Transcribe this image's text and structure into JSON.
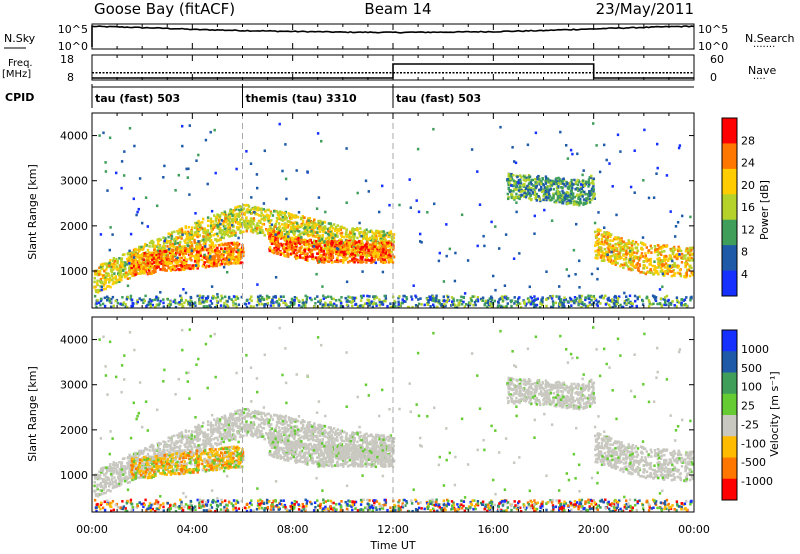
{
  "header": {
    "left": "Goose Bay (fitACF)",
    "center": "Beam 14",
    "right": "23/May/2011"
  },
  "chart_data": [
    {
      "type": "line",
      "panel": "noise",
      "left_label": "N.Sky",
      "right_label": "N.Search",
      "left_ticks": [
        "10^5",
        "10^0"
      ],
      "right_ticks": [
        "10^5",
        "10^0"
      ],
      "note": "log-scale noise traces",
      "series": [
        {
          "name": "N.Sky",
          "x": [
            0,
            2,
            4,
            6,
            8,
            10,
            12,
            14,
            16,
            18,
            20,
            22,
            24
          ],
          "values": [
            80000,
            40000,
            15000,
            8000,
            5000,
            3500,
            3000,
            3500,
            4500,
            8000,
            20000,
            45000,
            90000
          ]
        }
      ]
    },
    {
      "type": "line",
      "panel": "frequency",
      "left_label": "Freq.",
      "left_unit": "[MHz]",
      "right_label": "Nave",
      "left_ticks": [
        "18",
        "8"
      ],
      "right_ticks": [
        "60",
        "0"
      ],
      "series": [
        {
          "name": "Nave",
          "x": [
            0,
            12,
            12,
            20,
            20,
            24
          ],
          "values": [
            0,
            0,
            40,
            40,
            0,
            0
          ]
        },
        {
          "name": "Freq.",
          "x": [
            0,
            24
          ],
          "values": [
            10.5,
            10.5
          ]
        }
      ]
    },
    {
      "type": "table",
      "panel": "cpid",
      "label": "CPID",
      "segments": [
        {
          "start": 0,
          "end": 6,
          "text": "tau (fast) 503"
        },
        {
          "start": 6,
          "end": 12,
          "text": "themis (tau) 3310"
        },
        {
          "start": 12,
          "end": 24,
          "text": "tau (fast) 503"
        }
      ]
    },
    {
      "type": "heatmap",
      "panel": "power",
      "ylabel": "Slant Range [km]",
      "yticks": [
        1000,
        2000,
        3000,
        4000
      ],
      "ylim": [
        180,
        4500
      ],
      "colorbar_label": "Power [dB]",
      "colorbar_ticks": [
        "28",
        "24",
        "20",
        "16",
        "12",
        "8",
        "4"
      ],
      "colorbar_colors": [
        "#ff0000",
        "#ff7700",
        "#ffcc00",
        "#b4d22a",
        "#3f9e5a",
        "#1f5aa8",
        "#1530ff"
      ],
      "echo_bands": [
        {
          "t": [
            0,
            2,
            4,
            6,
            8,
            10,
            12
          ],
          "range": [
            800,
            1300,
            1800,
            2200,
            2000,
            1700,
            1600
          ],
          "width": 380,
          "level": 18
        },
        {
          "t": [
            1.5,
            3,
            4.5,
            6
          ],
          "range": [
            1150,
            1250,
            1350,
            1450
          ],
          "width": 300,
          "level": 23
        },
        {
          "t": [
            7,
            8,
            9,
            10,
            11,
            12
          ],
          "range": [
            1700,
            1550,
            1450,
            1450,
            1450,
            1450
          ],
          "width": 300,
          "level": 24
        },
        {
          "t": [
            16.5,
            18,
            19.5,
            20
          ],
          "range": [
            2900,
            2850,
            2750,
            2900
          ],
          "width": 350,
          "level": 12
        },
        {
          "t": [
            20,
            21,
            22,
            23,
            24
          ],
          "range": [
            1650,
            1450,
            1300,
            1250,
            1200
          ],
          "width": 420,
          "level": 20
        }
      ]
    },
    {
      "type": "heatmap",
      "panel": "velocity",
      "ylabel": "Slant Range [km]",
      "yticks": [
        1000,
        2000,
        3000,
        4000
      ],
      "ylim": [
        180,
        4500
      ],
      "xlabel": "Time UT",
      "xticks": [
        "00:00",
        "04:00",
        "08:00",
        "12:00",
        "16:00",
        "20:00",
        "00:00"
      ],
      "xlim": [
        0,
        24
      ],
      "colorbar_label": "Velocity [m s⁻¹]",
      "colorbar_ticks": [
        "1000",
        "500",
        "100",
        "25",
        "-25",
        "-100",
        "-500",
        "-1000"
      ],
      "colorbar_colors": [
        "#1530ff",
        "#1f5aa8",
        "#3f9e5a",
        "#66cc33",
        "#c8c8c0",
        "#ffbb00",
        "#ff7700",
        "#ff0000"
      ]
    }
  ]
}
